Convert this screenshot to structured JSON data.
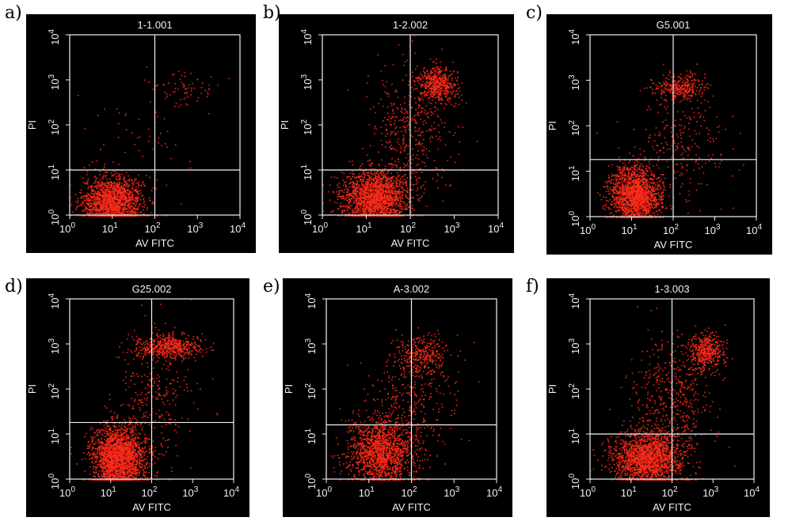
{
  "figure": {
    "background": "#ffffff",
    "panel_background": "#000000",
    "axis_color": "#f2f2f2",
    "dot_color": "#ff2a1a"
  },
  "chart_data": [
    {
      "type": "scatter",
      "letter": "a)",
      "title": "1-1.001",
      "xlabel": "AV FITC",
      "ylabel": "PI",
      "xscale": "log",
      "yscale": "log",
      "xlim": [
        1,
        10000
      ],
      "ylim": [
        1,
        10000
      ],
      "xticks": [
        "10",
        "10",
        "10",
        "10",
        "10"
      ],
      "yticks": [
        "10",
        "10",
        "10",
        "10",
        "10"
      ],
      "tick_exponents": [
        "0",
        "1",
        "2",
        "3",
        "4"
      ],
      "quadrant_gate": {
        "x": 100,
        "y": 10
      },
      "clusters": [
        {
          "cx": 10,
          "cy": 2,
          "sx": 0.35,
          "sy": 0.28,
          "n": 1700
        },
        {
          "cx": 500,
          "cy": 700,
          "sx": 0.4,
          "sy": 0.2,
          "n": 70
        },
        {
          "cx": 40,
          "cy": 40,
          "sx": 0.6,
          "sy": 0.6,
          "n": 60
        }
      ]
    },
    {
      "type": "scatter",
      "letter": "b)",
      "title": "1-2.002",
      "xlabel": "AV FITC",
      "ylabel": "PI",
      "xscale": "log",
      "yscale": "log",
      "xlim": [
        1,
        10000
      ],
      "ylim": [
        1,
        10000
      ],
      "xticks": [
        "10",
        "10",
        "10",
        "10",
        "10"
      ],
      "yticks": [
        "10",
        "10",
        "10",
        "10",
        "10"
      ],
      "tick_exponents": [
        "0",
        "1",
        "2",
        "3",
        "4"
      ],
      "quadrant_gate": {
        "x": 100,
        "y": 10
      },
      "clusters": [
        {
          "cx": 15,
          "cy": 2.5,
          "sx": 0.38,
          "sy": 0.3,
          "n": 1900
        },
        {
          "cx": 400,
          "cy": 800,
          "sx": 0.22,
          "sy": 0.2,
          "n": 500
        },
        {
          "cx": 100,
          "cy": 70,
          "sx": 0.45,
          "sy": 0.7,
          "n": 450
        }
      ]
    },
    {
      "type": "scatter",
      "letter": "c)",
      "title": "G5.001",
      "xlabel": "AV FITC",
      "ylabel": "PI",
      "xscale": "log",
      "yscale": "log",
      "xlim": [
        1,
        10000
      ],
      "ylim": [
        1,
        10000
      ],
      "xticks": [
        "10",
        "10",
        "10",
        "10",
        "10"
      ],
      "yticks": [
        "10",
        "10",
        "10",
        "10",
        "10"
      ],
      "tick_exponents": [
        "0",
        "1",
        "2",
        "3",
        "4"
      ],
      "quadrant_gate": {
        "x": 100,
        "y": 18
      },
      "clusters": [
        {
          "cx": 12,
          "cy": 3,
          "sx": 0.3,
          "sy": 0.33,
          "n": 1800
        },
        {
          "cx": 150,
          "cy": 700,
          "sx": 0.3,
          "sy": 0.15,
          "n": 300
        },
        {
          "cx": 150,
          "cy": 40,
          "sx": 0.55,
          "sy": 0.65,
          "n": 250
        }
      ]
    },
    {
      "type": "scatter",
      "letter": "d)",
      "title": "G25.002",
      "xlabel": "AV FITC",
      "ylabel": "PI",
      "xscale": "log",
      "yscale": "log",
      "xlim": [
        1,
        10000
      ],
      "ylim": [
        1,
        10000
      ],
      "xticks": [
        "10",
        "10",
        "10",
        "10",
        "10"
      ],
      "yticks": [
        "10",
        "10",
        "10",
        "10",
        "10"
      ],
      "tick_exponents": [
        "0",
        "1",
        "2",
        "3",
        "4"
      ],
      "quadrant_gate": {
        "x": 100,
        "y": 18
      },
      "clusters": [
        {
          "cx": 15,
          "cy": 3,
          "sx": 0.32,
          "sy": 0.35,
          "n": 2200
        },
        {
          "cx": 250,
          "cy": 900,
          "sx": 0.38,
          "sy": 0.14,
          "n": 550
        },
        {
          "cx": 100,
          "cy": 60,
          "sx": 0.5,
          "sy": 0.7,
          "n": 300
        }
      ]
    },
    {
      "type": "scatter",
      "letter": "e)",
      "title": "A-3.002",
      "xlabel": "AV FITC",
      "ylabel": "PI",
      "xscale": "log",
      "yscale": "log",
      "xlim": [
        1,
        10000
      ],
      "ylim": [
        1,
        10000
      ],
      "xticks": [
        "10",
        "10",
        "10",
        "10",
        "10"
      ],
      "yticks": [
        "10",
        "10",
        "10",
        "10",
        "10"
      ],
      "tick_exponents": [
        "0",
        "1",
        "2",
        "3",
        "4"
      ],
      "quadrant_gate": {
        "x": 100,
        "y": 16
      },
      "clusters": [
        {
          "cx": 18,
          "cy": 4,
          "sx": 0.38,
          "sy": 0.38,
          "n": 1500
        },
        {
          "cx": 200,
          "cy": 600,
          "sx": 0.3,
          "sy": 0.2,
          "n": 280
        },
        {
          "cx": 100,
          "cy": 50,
          "sx": 0.5,
          "sy": 0.65,
          "n": 350
        }
      ]
    },
    {
      "type": "scatter",
      "letter": "f)",
      "title": "1-3.003",
      "xlabel": "AV FITC",
      "ylabel": "PI",
      "xscale": "log",
      "yscale": "log",
      "xlim": [
        1,
        10000
      ],
      "ylim": [
        1,
        10000
      ],
      "xticks": [
        "10",
        "10",
        "10",
        "10",
        "10"
      ],
      "yticks": [
        "10",
        "10",
        "10",
        "10",
        "10"
      ],
      "tick_exponents": [
        "0",
        "1",
        "2",
        "3",
        "4"
      ],
      "quadrant_gate": {
        "x": 100,
        "y": 10
      },
      "clusters": [
        {
          "cx": 25,
          "cy": 3,
          "sx": 0.42,
          "sy": 0.3,
          "n": 1800
        },
        {
          "cx": 650,
          "cy": 700,
          "sx": 0.22,
          "sy": 0.2,
          "n": 450
        },
        {
          "cx": 100,
          "cy": 60,
          "sx": 0.5,
          "sy": 0.75,
          "n": 500
        }
      ]
    }
  ]
}
